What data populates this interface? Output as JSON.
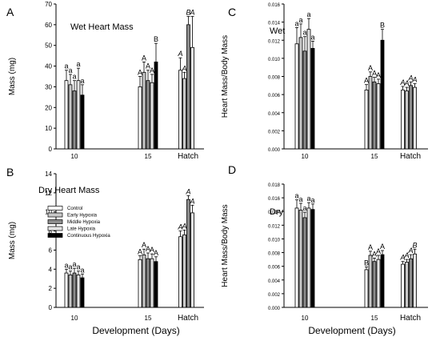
{
  "figure": {
    "x_axis_label": "Development (Days)",
    "y_label_mass": "Mass (mg)",
    "y_label_ratio": "Heart Mass/Body Mass",
    "legend": [
      {
        "name": "Control",
        "fill": "#ffffff"
      },
      {
        "name": "Early Hypoxia",
        "fill": "#c8c8c8"
      },
      {
        "name": "Middle Hypoxia",
        "fill": "#8c8c8c"
      },
      {
        "name": "Late Hypoxia",
        "fill": "#e4e4e4"
      },
      {
        "name": "Continuous Hypoxia",
        "fill": "#000000"
      }
    ]
  },
  "chart_data": [
    {
      "panel": "A",
      "type": "bar",
      "title": "Wet Heart Mass",
      "ylabel": "Mass (mg)",
      "ylim": [
        0,
        70
      ],
      "yticks": [
        "0",
        "10",
        "20",
        "30",
        "40",
        "50",
        "60",
        "70"
      ],
      "categories": [
        "10",
        "15",
        "Hatch"
      ],
      "series": [
        {
          "name": "Control",
          "values": [
            33,
            30,
            38
          ],
          "errors": [
            5,
            5,
            6
          ]
        },
        {
          "name": "Early Hypoxia",
          "values": [
            31,
            37,
            34
          ],
          "errors": [
            5,
            5,
            3
          ]
        },
        {
          "name": "Middle Hypoxia",
          "values": [
            28,
            33,
            60
          ],
          "errors": [
            5,
            5,
            4
          ]
        },
        {
          "name": "Late Hypoxia",
          "values": [
            33,
            32,
            49
          ],
          "errors": [
            6,
            4,
            15
          ]
        },
        {
          "name": "Continuous Hypoxia",
          "values": [
            26,
            42,
            null
          ],
          "errors": [
            5,
            9,
            null
          ]
        }
      ],
      "sig_labels": [
        [
          "a",
          "a",
          "a",
          "a",
          "a"
        ],
        [
          "A",
          "A",
          "A",
          "A",
          "B"
        ],
        [
          "A",
          "A",
          "B",
          "A",
          ""
        ]
      ]
    },
    {
      "panel": "B",
      "type": "bar",
      "title": "Dry Heart Mass",
      "ylabel": "Mass (mg)",
      "ylim": [
        0,
        14
      ],
      "yticks": [
        "0",
        "2",
        "4",
        "6",
        "8",
        "10",
        "12",
        "14"
      ],
      "categories": [
        "10",
        "15",
        "Hatch"
      ],
      "series": [
        {
          "name": "Control",
          "values": [
            3.6,
            5.0,
            7.4
          ],
          "errors": [
            0.4,
            0.4,
            0.6
          ]
        },
        {
          "name": "Early Hypoxia",
          "values": [
            3.4,
            5.5,
            7.6
          ],
          "errors": [
            0.4,
            0.6,
            0.5
          ]
        },
        {
          "name": "Middle Hypoxia",
          "values": [
            3.6,
            5.1,
            11.3
          ],
          "errors": [
            0.5,
            0.6,
            0.4
          ]
        },
        {
          "name": "Late Hypoxia",
          "values": [
            3.4,
            5.1,
            9.9
          ],
          "errors": [
            0.4,
            0.5,
            0.8
          ]
        },
        {
          "name": "Continuous Hypoxia",
          "values": [
            3.1,
            4.8,
            null
          ],
          "errors": [
            0.4,
            0.5,
            null
          ]
        }
      ],
      "sig_labels": [
        [
          "a",
          "a",
          "a",
          "a",
          "a"
        ],
        [
          "A",
          "A",
          "A",
          "A",
          "A"
        ],
        [
          "A",
          "A",
          "A",
          "A",
          ""
        ]
      ]
    },
    {
      "panel": "C",
      "type": "bar",
      "title": "Wet",
      "ylabel": "Heart Mass/Body Mass",
      "ylim": [
        0,
        0.016
      ],
      "yticks": [
        "0.000",
        "0.002",
        "0.004",
        "0.006",
        "0.008",
        "0.010",
        "0.012",
        "0.014",
        "0.016"
      ],
      "categories": [
        "10",
        "15",
        "Hatch"
      ],
      "series": [
        {
          "name": "Control",
          "values": [
            0.0116,
            0.0065,
            0.0065
          ],
          "errors": [
            0.0018,
            0.0006,
            0.0004
          ]
        },
        {
          "name": "Early Hypoxia",
          "values": [
            0.0123,
            0.008,
            0.0064
          ],
          "errors": [
            0.0015,
            0.0005,
            0.0004
          ]
        },
        {
          "name": "Middle Hypoxia",
          "values": [
            0.0108,
            0.0074,
            0.007
          ],
          "errors": [
            0.0016,
            0.0005,
            0.0004
          ]
        },
        {
          "name": "Late Hypoxia",
          "values": [
            0.0132,
            0.0072,
            0.0068
          ],
          "errors": [
            0.0012,
            0.0005,
            0.0004
          ]
        },
        {
          "name": "Continuous Hypoxia",
          "values": [
            0.0111,
            0.012,
            null
          ],
          "errors": [
            0.0008,
            0.0012,
            null
          ]
        }
      ],
      "sig_labels": [
        [
          "a",
          "a",
          "a",
          "a",
          "a"
        ],
        [
          "A",
          "A",
          "A",
          "A",
          "B"
        ],
        [
          "A",
          "A",
          "A",
          "A",
          ""
        ]
      ]
    },
    {
      "panel": "D",
      "type": "bar",
      "title": "Dry",
      "ylabel": "Heart Mass/Body Mass",
      "ylim": [
        0,
        0.018
      ],
      "yticks": [
        "0.000",
        "0.002",
        "0.004",
        "0.006",
        "0.008",
        "0.010",
        "0.012",
        "0.014",
        "0.016",
        "0.018"
      ],
      "categories": [
        "10",
        "15",
        "Hatch"
      ],
      "series": [
        {
          "name": "Control",
          "values": [
            0.0145,
            0.0055,
            0.0063
          ],
          "errors": [
            0.0012,
            0.0004,
            0.0004
          ]
        },
        {
          "name": "Early Hypoxia",
          "values": [
            0.0142,
            0.0076,
            0.0066
          ],
          "errors": [
            0.001,
            0.0006,
            0.0004
          ]
        },
        {
          "name": "Middle Hypoxia",
          "values": [
            0.0131,
            0.0067,
            0.0071
          ],
          "errors": [
            0.0008,
            0.0005,
            0.0006
          ]
        },
        {
          "name": "Late Hypoxia",
          "values": [
            0.0145,
            0.007,
            0.0078
          ],
          "errors": [
            0.0008,
            0.0006,
            0.0007
          ]
        },
        {
          "name": "Continuous Hypoxia",
          "values": [
            0.0143,
            0.0077,
            null
          ],
          "errors": [
            0.0008,
            0.0006,
            null
          ]
        }
      ],
      "sig_labels": [
        [
          "a",
          "a",
          "a",
          "a",
          "a"
        ],
        [
          "B",
          "A",
          "A",
          "A",
          "A"
        ],
        [
          "A",
          "A",
          "A",
          "B",
          ""
        ]
      ]
    }
  ]
}
